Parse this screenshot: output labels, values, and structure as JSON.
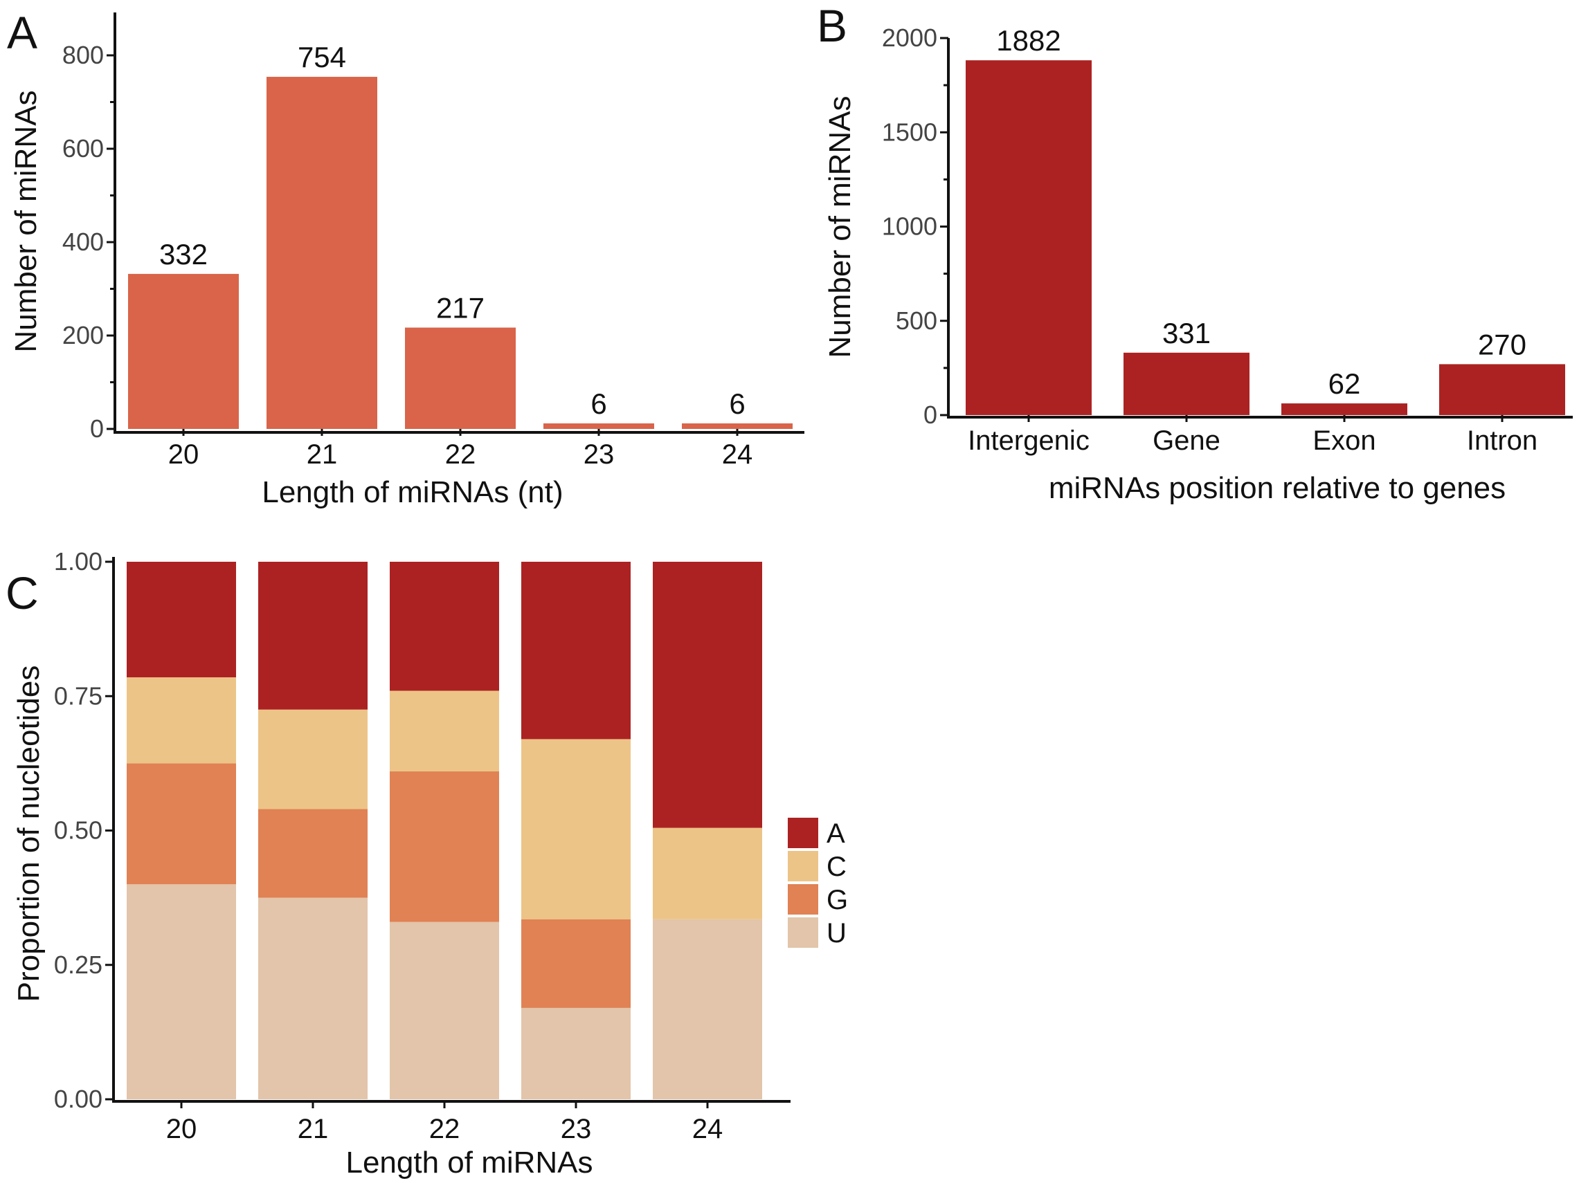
{
  "chart_data": [
    {
      "panel": "A",
      "type": "bar",
      "categories": [
        "20",
        "21",
        "22",
        "23",
        "24"
      ],
      "values": [
        332,
        754,
        217,
        6,
        6
      ],
      "data_labels": [
        "332",
        "754",
        "217",
        "6",
        "6"
      ],
      "ylim": [
        0,
        880
      ],
      "yticks": [
        0,
        200,
        400,
        600,
        800
      ],
      "ytick_labels": [
        "0",
        "200",
        "400",
        "600",
        "800"
      ],
      "xlabel": "Length of miRNAs (nt)",
      "ylabel": "Number of miRNAs",
      "color": "#D9644A"
    },
    {
      "panel": "B",
      "type": "bar",
      "categories": [
        "Intergenic",
        "Gene",
        "Exon",
        "Intron"
      ],
      "values": [
        1882,
        331,
        62,
        270
      ],
      "data_labels": [
        "1882",
        "331",
        "62",
        "270"
      ],
      "ylim": [
        0,
        2000
      ],
      "yticks": [
        0,
        500,
        1000,
        1500,
        2000
      ],
      "ytick_labels": [
        "0",
        "500",
        "1000",
        "1500",
        "2000"
      ],
      "xlabel": "miRNAs position relative to genes",
      "ylabel": "Number of miRNAs",
      "color": "#AC2222"
    },
    {
      "panel": "C",
      "type": "bar",
      "stacked": true,
      "categories": [
        "20",
        "21",
        "22",
        "23",
        "24"
      ],
      "series": [
        {
          "name": "U",
          "values": [
            0.4,
            0.375,
            0.33,
            0.17,
            0.335
          ],
          "color": "#E2C5AA"
        },
        {
          "name": "G",
          "values": [
            0.225,
            0.165,
            0.28,
            0.165,
            0.0
          ],
          "color": "#E08254"
        },
        {
          "name": "C",
          "values": [
            0.16,
            0.185,
            0.15,
            0.335,
            0.17
          ],
          "color": "#EDC487"
        },
        {
          "name": "A",
          "values": [
            0.215,
            0.275,
            0.24,
            0.33,
            0.495
          ],
          "color": "#AC2222"
        }
      ],
      "legend": [
        "A",
        "C",
        "G",
        "U"
      ],
      "ylim": [
        0,
        1.0
      ],
      "yticks": [
        0,
        0.25,
        0.5,
        0.75,
        1.0
      ],
      "ytick_labels": [
        "0.00",
        "0.25",
        "0.50",
        "0.75",
        "1.00"
      ],
      "xlabel": "Length  of  miRNAs",
      "ylabel": "Proportion of nucleotides"
    }
  ],
  "panel_labels": {
    "a": "A",
    "b": "B",
    "c": "C"
  }
}
